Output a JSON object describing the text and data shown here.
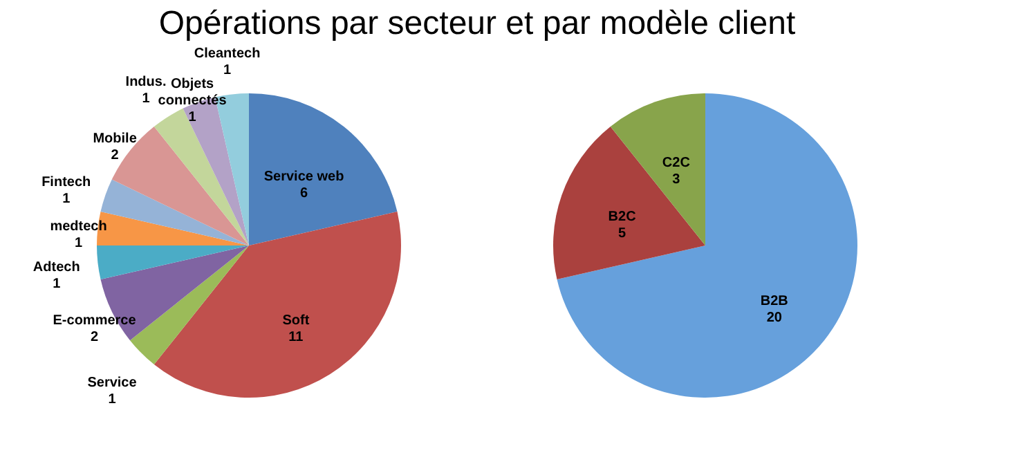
{
  "chart_data": [
    {
      "type": "pie",
      "title": "Opérations par secteur et par modèle client",
      "categories": [
        "Service web",
        "Soft",
        "Service",
        "E-commerce",
        "Adtech",
        "medtech",
        "Fintech",
        "Mobile",
        "Indus.",
        "Objets connectés",
        "Cleantech"
      ],
      "values": [
        6,
        11,
        1,
        2,
        1,
        1,
        1,
        2,
        1,
        1,
        1
      ],
      "colors": [
        "#4f81bd",
        "#c0504d",
        "#9bbb59",
        "#8064a2",
        "#4bacc6",
        "#f79646",
        "#95b3d7",
        "#d99694",
        "#c3d69b",
        "#b3a2c7",
        "#93cddd"
      ],
      "data_labels": true,
      "legend": false
    },
    {
      "type": "pie",
      "categories": [
        "B2B",
        "B2C",
        "C2C"
      ],
      "values": [
        20,
        5,
        3
      ],
      "colors": [
        "#66a0dc",
        "#aa413e",
        "#88a44b"
      ],
      "data_labels": true,
      "legend": false
    }
  ]
}
